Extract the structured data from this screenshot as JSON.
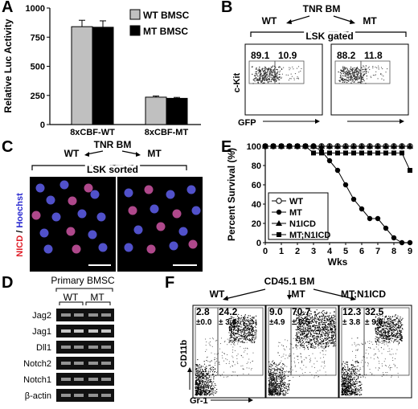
{
  "panels": {
    "A": {
      "letter": "A",
      "chart_data": {
        "type": "bar",
        "categories": [
          "8xCBF-WT",
          "8xCBF-MT"
        ],
        "series": [
          {
            "name": "WT BMSC",
            "values": [
              840,
              235
            ],
            "errors": [
              55,
              10
            ],
            "color": "#c0c0c0"
          },
          {
            "name": "MT BMSC",
            "values": [
              835,
              225
            ],
            "errors": [
              55,
              8
            ],
            "color": "#000000"
          }
        ],
        "ylabel": "Relative Luc Activity",
        "ylim": [
          0,
          1000
        ],
        "yticks": [
          "0",
          "250",
          "500",
          "750",
          "1000"
        ],
        "legend": "top-right"
      }
    },
    "B": {
      "letter": "B",
      "title": "TNR BM",
      "wt": "WT",
      "mt": "MT",
      "gate": "LSK gated",
      "ylabel": "c-Kit",
      "xlabel": "GFP",
      "wt_values": [
        "89.1",
        "10.9"
      ],
      "mt_values": [
        "88.2",
        "11.8"
      ]
    },
    "C": {
      "letter": "C",
      "title": "TNR BM",
      "wt": "WT",
      "mt": "MT",
      "sorted": "LSK sorted",
      "ylabel_red": "NICD",
      "ylabel_sep": " / ",
      "ylabel_blue": "Hoechst"
    },
    "D": {
      "letter": "D",
      "title": "Primary BMSC",
      "wt": "WT",
      "mt": "MT",
      "genes": [
        "Jag2",
        "Jag1",
        "Dll1",
        "Notch2",
        "Notch1",
        "β-actin"
      ]
    },
    "E": {
      "letter": "E",
      "chart_data": {
        "type": "line",
        "xlabel": "Wks",
        "ylabel": "Percent Survival (%)",
        "xlim": [
          0,
          9
        ],
        "ylim": [
          0,
          100
        ],
        "xticks": [
          "0",
          "1",
          "2",
          "3",
          "4",
          "5",
          "6",
          "7",
          "8",
          "9"
        ],
        "yticks": [
          "0",
          "20",
          "40",
          "60",
          "80",
          "100"
        ],
        "legend": "bottom-left",
        "series": [
          {
            "name": "WT",
            "marker": "open-circle",
            "x": [
              0,
              0.5,
              1,
              1.5,
              2,
              2.5,
              3,
              3.5,
              4,
              4.5,
              5,
              5.5,
              6,
              6.5,
              7,
              7.5,
              8,
              8.5,
              9
            ],
            "y": [
              100,
              100,
              100,
              100,
              100,
              100,
              100,
              100,
              100,
              100,
              100,
              100,
              100,
              100,
              100,
              100,
              100,
              100,
              100
            ]
          },
          {
            "name": "MT",
            "marker": "filled-circle",
            "x": [
              0,
              0.5,
              1,
              1.5,
              2,
              2.5,
              3,
              3.5,
              4,
              4.5,
              5,
              5.5,
              6,
              6.5,
              7,
              7.5,
              8,
              8.5,
              9
            ],
            "y": [
              100,
              100,
              100,
              100,
              100,
              100,
              100,
              95,
              85,
              75,
              60,
              45,
              35,
              25,
              25,
              15,
              5,
              0,
              0
            ]
          },
          {
            "name": "N1ICD",
            "marker": "filled-triangle",
            "x": [
              0,
              0.5,
              1,
              1.5,
              2,
              2.5,
              3,
              3.5,
              4,
              4.5,
              5,
              5.5,
              6,
              6.5,
              7,
              7.5,
              8,
              8.5,
              9
            ],
            "y": [
              100,
              100,
              100,
              100,
              100,
              100,
              100,
              100,
              100,
              100,
              100,
              100,
              100,
              100,
              100,
              100,
              100,
              100,
              100
            ]
          },
          {
            "name": "MT;N1ICD",
            "marker": "filled-square",
            "x": [
              0,
              0.5,
              1,
              1.5,
              2,
              2.5,
              3,
              3.5,
              4,
              4.5,
              5,
              5.5,
              6,
              6.5,
              7,
              7.5,
              8,
              8.5,
              9
            ],
            "y": [
              100,
              100,
              100,
              100,
              100,
              100,
              93,
              93,
              93,
              93,
              93,
              93,
              93,
              93,
              93,
              93,
              93,
              93,
              75
            ]
          }
        ]
      }
    },
    "F": {
      "letter": "F",
      "title": "CD45.1 BM",
      "ylabel": "CD11b",
      "xlabel": "Gr-1",
      "plots": [
        {
          "name": "WT",
          "v1": "2.8",
          "e1": "±0.0",
          "v2": "24.2",
          "e2": "± 3.6"
        },
        {
          "name": "MT",
          "v1": "9.0",
          "e1": "±4.9",
          "v2": "70.7",
          "e2": "± 9.5"
        },
        {
          "name": "MT;N1ICD",
          "v1": "12.3",
          "e1": "± 3.8",
          "v2": "32.5",
          "e2": "± 9.8"
        }
      ]
    }
  }
}
